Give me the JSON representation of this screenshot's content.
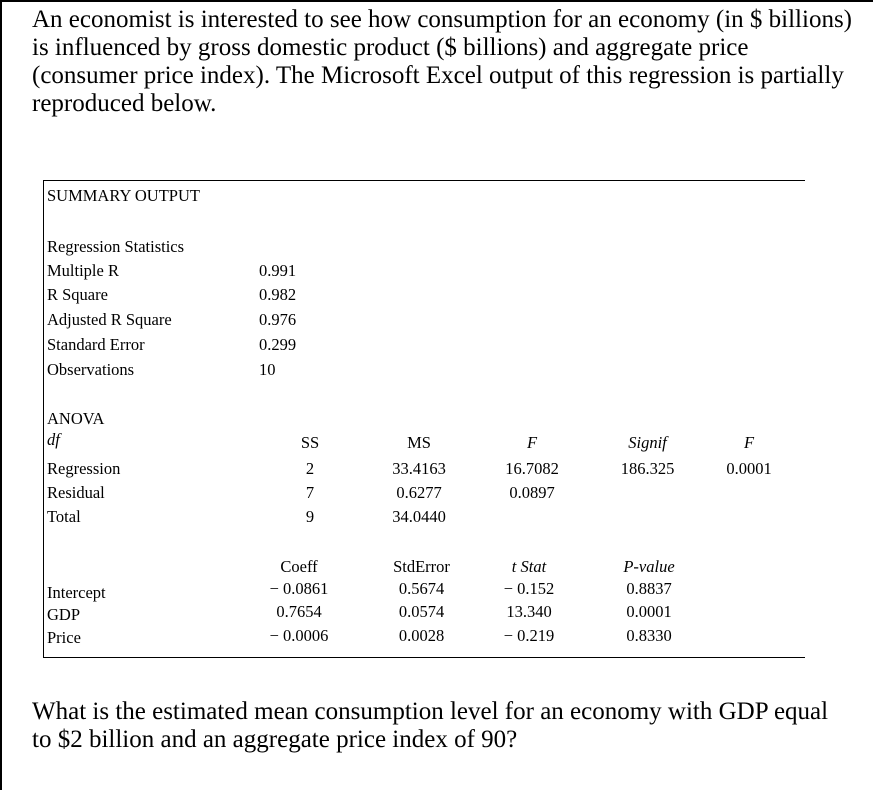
{
  "intro": "An economist is interested to see how consumption for an economy (in $ billions) is influenced by gross domestic product ($ billions) and aggregate price (consumer price index). The Microsoft Excel output of this regression is partially reproduced below.",
  "question": "What is the estimated mean consumption level for an economy with GDP equal to $2 billion and an aggregate price index of 90?",
  "table": {
    "title": "SUMMARY OUTPUT",
    "reg_stats": {
      "heading": "Regression Statistics",
      "rows": [
        {
          "label": "Multiple R",
          "value": "0.991"
        },
        {
          "label": "R Square",
          "value": "0.982"
        },
        {
          "label": "Adjusted R Square",
          "value": "0.976"
        },
        {
          "label": "Standard Error",
          "value": "0.299"
        },
        {
          "label": "Observations",
          "value": "10"
        }
      ]
    },
    "anova": {
      "heading": "ANOVA",
      "headers": [
        "df",
        "SS",
        "MS",
        "F",
        "Signif",
        "F"
      ],
      "rows": [
        {
          "label": "Regression",
          "cells": [
            "2",
            "33.4163",
            "16.7082",
            "186.325",
            "0.0001"
          ]
        },
        {
          "label": "Residual",
          "cells": [
            "7",
            "0.6277",
            "0.0897",
            "",
            ""
          ]
        },
        {
          "label": "Total",
          "cells": [
            "9",
            "34.0440",
            "",
            "",
            ""
          ]
        }
      ]
    },
    "coef": {
      "headers": [
        "Coeff",
        "StdError",
        "t Stat",
        "P-value"
      ],
      "rows": [
        {
          "label": "Intercept",
          "cells": [
            "− 0.0861",
            "0.5674",
            "− 0.152",
            "0.8837"
          ]
        },
        {
          "label": "GDP",
          "cells": [
            "0.7654",
            "0.0574",
            "13.340",
            "0.0001"
          ]
        },
        {
          "label": "Price",
          "cells": [
            "− 0.0006",
            "0.0028",
            "− 0.219",
            "0.8330"
          ]
        }
      ]
    }
  }
}
